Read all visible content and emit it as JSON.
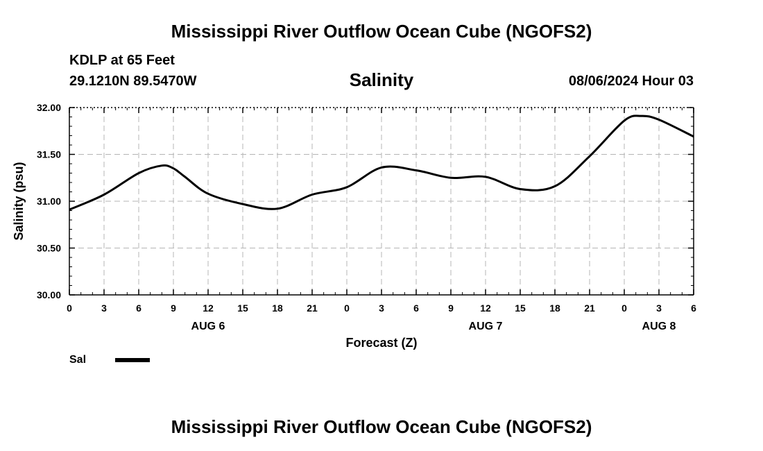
{
  "header": {
    "title": "Mississippi River Outflow Ocean Cube (NGOFS2)",
    "station": "KDLP at 65 Feet",
    "coords": "29.1210N  89.5470W",
    "variable": "Salinity",
    "datetime": "08/06/2024 Hour 03"
  },
  "footer": {
    "title": "Mississippi River Outflow Ocean Cube (NGOFS2)"
  },
  "legend": {
    "label": "Sal"
  },
  "chart_data": {
    "type": "line",
    "title": "Salinity",
    "xlabel": "Forecast (Z)",
    "ylabel": "Salinity (psu)",
    "ylim": [
      30.0,
      32.0
    ],
    "xlim": [
      0,
      54
    ],
    "grid": true,
    "yticks": [
      "30.00",
      "30.50",
      "31.00",
      "31.50",
      "32.00"
    ],
    "xticks": [
      "0",
      "3",
      "6",
      "9",
      "12",
      "15",
      "18",
      "21",
      "0",
      "3",
      "6",
      "9",
      "12",
      "15",
      "18",
      "21",
      "0",
      "3",
      "6"
    ],
    "day_labels": [
      {
        "label": "AUG 6",
        "hour": 12
      },
      {
        "label": "AUG 7",
        "hour": 36
      },
      {
        "label": "AUG 8",
        "hour": 51
      }
    ],
    "series": [
      {
        "name": "Sal",
        "x": [
          0,
          3,
          6,
          8,
          9,
          10,
          12,
          15,
          18,
          21,
          24,
          27,
          30,
          33,
          36,
          39,
          42,
          45,
          48,
          49.5,
          51,
          54
        ],
        "values": [
          30.91,
          31.07,
          31.3,
          31.38,
          31.35,
          31.26,
          31.08,
          30.97,
          30.92,
          31.07,
          31.15,
          31.36,
          31.33,
          31.25,
          31.26,
          31.13,
          31.16,
          31.48,
          31.86,
          31.91,
          31.87,
          31.69
        ]
      }
    ]
  }
}
